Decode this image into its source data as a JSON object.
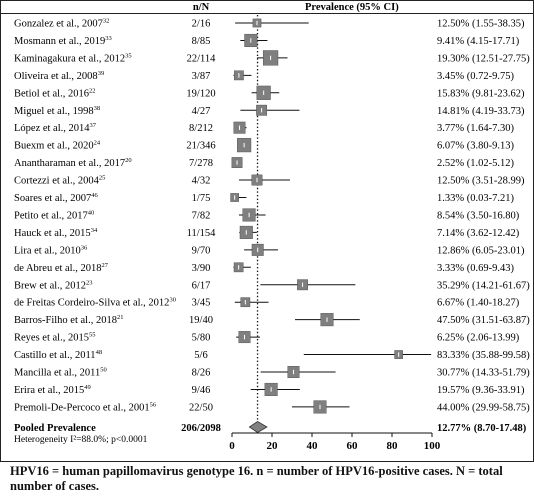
{
  "chart_data": {
    "type": "forest",
    "header": {
      "study": "",
      "nn": "n/N",
      "prevalence": "Prevalence (95% CI)"
    },
    "studies": [
      {
        "label": "Gonzalez et al., 2007",
        "ref": "32",
        "nn": "2/16",
        "est": 12.5,
        "lo": 1.55,
        "hi": 38.35,
        "ci_text": "12.50% (1.55-38.35)"
      },
      {
        "label": "Mosmann et al., 2019",
        "ref": "33",
        "nn": "8/85",
        "est": 9.41,
        "lo": 4.15,
        "hi": 17.71,
        "ci_text": "9.41% (4.15-17.71)"
      },
      {
        "label": "Kaminagakura et al., 2012",
        "ref": "35",
        "nn": "22/114",
        "est": 19.3,
        "lo": 12.51,
        "hi": 27.75,
        "ci_text": "19.30% (12.51-27.75)"
      },
      {
        "label": "Oliveira et al., 2008",
        "ref": "39",
        "nn": "3/87",
        "est": 3.45,
        "lo": 0.72,
        "hi": 9.75,
        "ci_text": "3.45% (0.72-9.75)"
      },
      {
        "label": "Betiol et al., 2016",
        "ref": "22",
        "nn": "19/120",
        "est": 15.83,
        "lo": 9.81,
        "hi": 23.62,
        "ci_text": "15.83% (9.81-23.62)"
      },
      {
        "label": "Miguel et al., 1998",
        "ref": "38",
        "nn": "4/27",
        "est": 14.81,
        "lo": 4.19,
        "hi": 33.73,
        "ci_text": "14.81% (4.19-33.73)"
      },
      {
        "label": "López et al., 2014",
        "ref": "37",
        "nn": "8/212",
        "est": 3.77,
        "lo": 1.64,
        "hi": 7.3,
        "ci_text": "3.77% (1.64-7.30)"
      },
      {
        "label": "Buexm et al., 2020",
        "ref": "24",
        "nn": "21/346",
        "est": 6.07,
        "lo": 3.8,
        "hi": 9.13,
        "ci_text": "6.07% (3.80-9.13)"
      },
      {
        "label": "Anantharaman et al., 2017",
        "ref": "20",
        "nn": "7/278",
        "est": 2.52,
        "lo": 1.02,
        "hi": 5.12,
        "ci_text": "2.52% (1.02-5.12)"
      },
      {
        "label": "Cortezzi et al., 2004",
        "ref": "25",
        "nn": "4/32",
        "est": 12.5,
        "lo": 3.51,
        "hi": 28.99,
        "ci_text": "12.50% (3.51-28.99)"
      },
      {
        "label": "Soares et al., 2007",
        "ref": "46",
        "nn": "1/75",
        "est": 1.33,
        "lo": 0.03,
        "hi": 7.21,
        "ci_text": "1.33% (0.03-7.21)"
      },
      {
        "label": "Petito et al., 2017",
        "ref": "40",
        "nn": "7/82",
        "est": 8.54,
        "lo": 3.5,
        "hi": 16.8,
        "ci_text": "8.54% (3.50-16.80)"
      },
      {
        "label": "Hauck et al., 2015",
        "ref": "34",
        "nn": "11/154",
        "est": 7.14,
        "lo": 3.62,
        "hi": 12.42,
        "ci_text": "7.14% (3.62-12.42)"
      },
      {
        "label": "Lira et al., 2010",
        "ref": "36",
        "nn": "9/70",
        "est": 12.86,
        "lo": 6.05,
        "hi": 23.01,
        "ci_text": "12.86% (6.05-23.01)"
      },
      {
        "label": "de Abreu et al., 2018",
        "ref": "27",
        "nn": "3/90",
        "est": 3.33,
        "lo": 0.69,
        "hi": 9.43,
        "ci_text": "3.33% (0.69-9.43)"
      },
      {
        "label": "Brew et al., 2012",
        "ref": "23",
        "nn": "6/17",
        "est": 35.29,
        "lo": 14.21,
        "hi": 61.67,
        "ci_text": "35.29% (14.21-61.67)"
      },
      {
        "label": "de Freitas Cordeiro-Silva et al., 2012",
        "ref": "30",
        "nn": "3/45",
        "est": 6.67,
        "lo": 1.4,
        "hi": 18.27,
        "ci_text": "6.67% (1.40-18.27)"
      },
      {
        "label": "Barros-Filho et al., 2018",
        "ref": "21",
        "nn": "19/40",
        "est": 47.5,
        "lo": 31.51,
        "hi": 63.87,
        "ci_text": "47.50% (31.51-63.87)"
      },
      {
        "label": "Reyes et al., 2015",
        "ref": "55",
        "nn": "5/80",
        "est": 6.25,
        "lo": 2.06,
        "hi": 13.99,
        "ci_text": "6.25% (2.06-13.99)"
      },
      {
        "label": "Castillo et al., 2011",
        "ref": "48",
        "nn": "5/6",
        "est": 83.33,
        "lo": 35.88,
        "hi": 99.58,
        "ci_text": "83.33% (35.88-99.58)"
      },
      {
        "label": "Mancilla et al., 2011",
        "ref": "50",
        "nn": "8/26",
        "est": 30.77,
        "lo": 14.33,
        "hi": 51.79,
        "ci_text": "30.77% (14.33-51.79)"
      },
      {
        "label": "Erira et al., 2015",
        "ref": "49",
        "nn": "9/46",
        "est": 19.57,
        "lo": 9.36,
        "hi": 33.91,
        "ci_text": "19.57% (9.36-33.91)"
      },
      {
        "label": "Premoli-De-Percoco et al., 2001",
        "ref": "56",
        "nn": "22/50",
        "est": 44.0,
        "lo": 29.99,
        "hi": 58.75,
        "ci_text": "44.00% (29.99-58.75)"
      }
    ],
    "weights": [
      2,
      6,
      8,
      3,
      7,
      4,
      5,
      7,
      4,
      4,
      2,
      6,
      6,
      5,
      3,
      4,
      3,
      6,
      5,
      2,
      5,
      6,
      6
    ],
    "pooled": {
      "label": "Pooled Prevalence",
      "nn": "206/2098",
      "est": 12.77,
      "lo": 8.7,
      "hi": 17.48,
      "ci_text": "12.77% (8.70-17.48)"
    },
    "heterogeneity": "Heterogeneity I²=88.0%; p<0.0001",
    "x_ticks": [
      0,
      20,
      40,
      60,
      80,
      100
    ],
    "xlim": [
      0,
      100
    ],
    "reference_line": 12.77
  },
  "caption": "HPV16 = human papillomavirus genotype 16. n = number of HPV16-positive cases. N = total number of cases.",
  "colors": {
    "marker": "#7f7f7f",
    "marker_edge": "#444444",
    "line": "#111111",
    "diamond": "#808080"
  }
}
